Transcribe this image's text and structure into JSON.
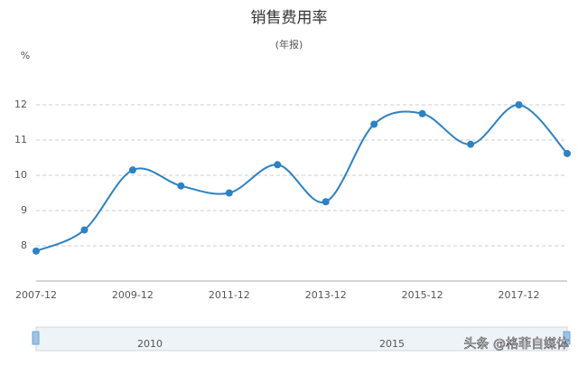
{
  "chart_data": {
    "type": "line",
    "title": "销售费用率",
    "subtitle": "(年报)",
    "y_unit": "%",
    "categories": [
      "2007-12",
      null,
      "2009-12",
      null,
      "2011-12",
      null,
      "2013-12",
      null,
      "2015-12",
      null,
      "2017-12",
      null
    ],
    "values": [
      7.85,
      8.45,
      10.15,
      9.7,
      9.5,
      10.3,
      9.25,
      11.45,
      11.75,
      10.88,
      12.0,
      10.62
    ],
    "color": "#2b82c4",
    "ylim": [
      7,
      13
    ],
    "yticks": [
      8,
      9,
      10,
      11,
      12
    ],
    "grid": true,
    "zoom_labels": [
      "2010",
      "2015"
    ]
  },
  "watermark": "头条 @格菲自媒体"
}
